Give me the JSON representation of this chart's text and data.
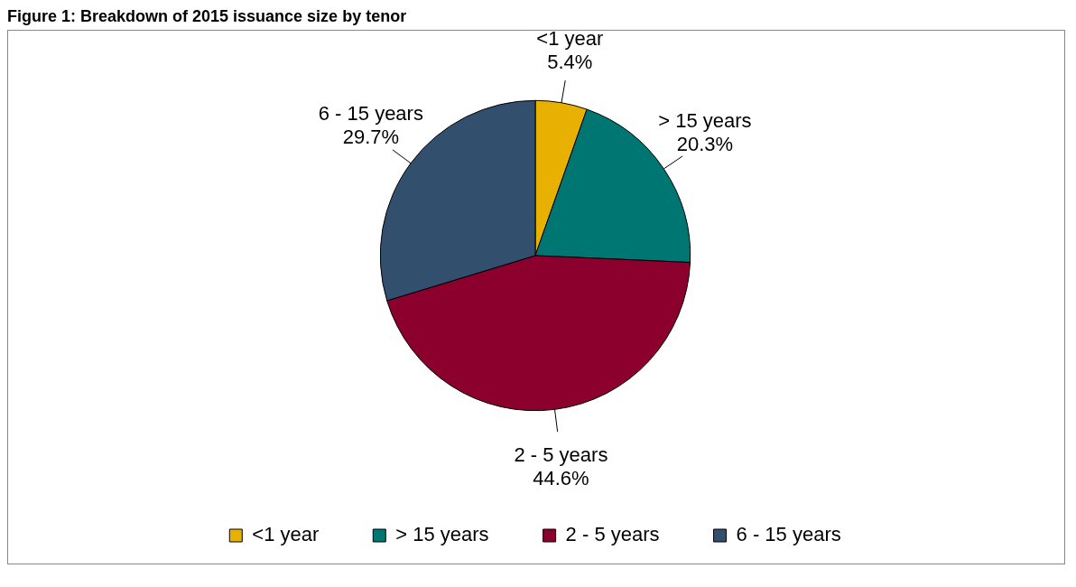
{
  "chart_data": {
    "type": "pie",
    "title": "Figure 1: Breakdown of 2015 issuance size by tenor",
    "categories": [
      "<1 year",
      "> 15 years",
      "2 - 5 years",
      "6 - 15 years"
    ],
    "values": [
      5.4,
      20.3,
      44.6,
      29.7
    ],
    "colors": [
      "#e8b000",
      "#007672",
      "#8b002c",
      "#32506e"
    ],
    "value_labels": [
      "5.4%",
      "20.3%",
      "44.6%",
      "29.7%"
    ],
    "legend": "bottom"
  }
}
